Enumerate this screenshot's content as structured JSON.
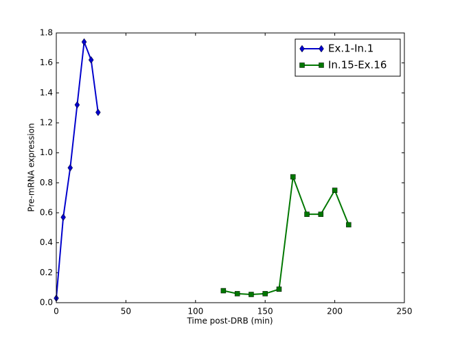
{
  "chart_data": {
    "type": "line",
    "xlabel": "Time post-DRB (min)",
    "ylabel": "Pre-mRNA expression",
    "series": [
      {
        "name": "Ex.1-In.1",
        "color": "#0000cc",
        "marker": "diamond",
        "x": [
          0,
          5,
          10,
          15,
          20,
          25,
          30
        ],
        "values": [
          0.03,
          0.57,
          0.9,
          1.32,
          1.74,
          1.62,
          1.27
        ]
      },
      {
        "name": "In.15-Ex.16",
        "color": "#007700",
        "marker": "square",
        "x": [
          120,
          130,
          140,
          150,
          160,
          170,
          180,
          190,
          200,
          210
        ],
        "values": [
          0.08,
          0.06,
          0.055,
          0.06,
          0.09,
          0.84,
          0.59,
          0.59,
          0.75,
          0.52
        ]
      }
    ],
    "xlim": [
      0,
      250
    ],
    "xticks": [
      0,
      50,
      100,
      150,
      200,
      250
    ],
    "ylim": [
      0,
      1.8
    ],
    "yticks": [
      {
        "value": 0,
        "label": "0.0"
      },
      0.2,
      0.4,
      0.6,
      0.8,
      {
        "value": 1,
        "label": "1.0"
      },
      1.2,
      1.4,
      1.6,
      1.8
    ],
    "grid": false,
    "legend": "upper right"
  }
}
